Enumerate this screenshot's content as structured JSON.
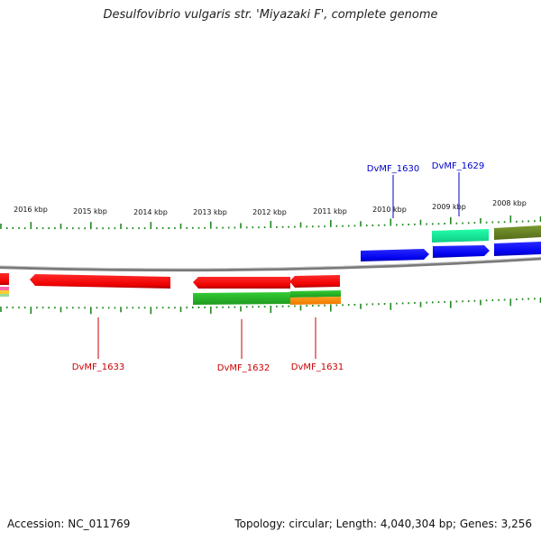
{
  "title": "Desulfovibrio vulgaris str. 'Miyazaki F', complete genome",
  "footer": {
    "accession": "Accession: NC_011769",
    "topology": "Topology: circular; Length: 4,040,304 bp; Genes: 3,256"
  },
  "kbp_ticks": [
    "2016 kbp",
    "2015 kbp",
    "2014 kbp",
    "2013 kbp",
    "2012 kbp",
    "2011 kbp",
    "2010 kbp",
    "2009 kbp",
    "2008 kbp"
  ],
  "genes": [
    {
      "label": "DvMF_1630",
      "color": "#0000cc",
      "strand": "forward"
    },
    {
      "label": "DvMF_1629",
      "color": "#0000cc",
      "strand": "forward"
    },
    {
      "label": "DvMF_1633",
      "color": "#cc0000",
      "strand": "reverse"
    },
    {
      "label": "DvMF_1632",
      "color": "#cc0000",
      "strand": "reverse"
    },
    {
      "label": "DvMF_1631",
      "color": "#cc0000",
      "strand": "reverse"
    }
  ],
  "colors": {
    "forward_gene": "#0000ee",
    "reverse_gene": "#ee0000",
    "tick": "#228822",
    "backbone": "#888888"
  }
}
